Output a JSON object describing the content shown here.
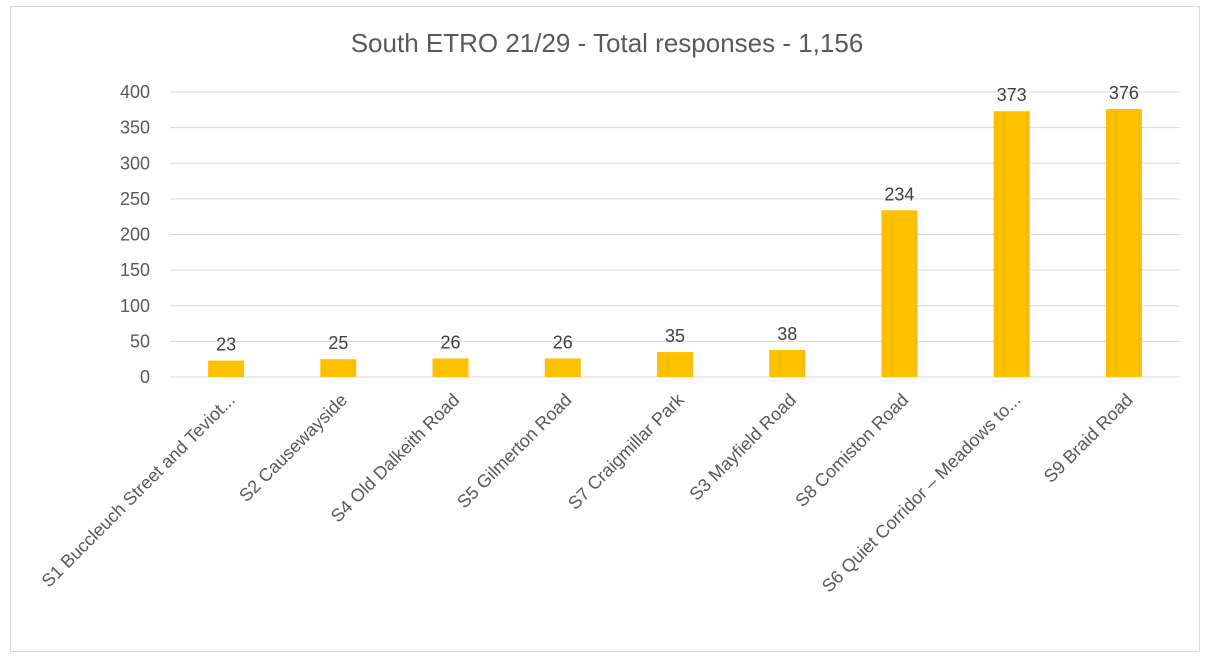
{
  "chart_data": {
    "type": "bar",
    "title": "South ETRO 21/29  - Total responses - 1,156",
    "xlabel": "",
    "ylabel": "",
    "ylim": [
      0,
      400
    ],
    "yticks": [
      0,
      50,
      100,
      150,
      200,
      250,
      300,
      350,
      400
    ],
    "grid": true,
    "legend": "none",
    "bar_color": "#FFC000",
    "categories": [
      "S1 Buccleuch Street and Teviot...",
      "S2 Causewayside",
      "S4 Old Dalkeith Road",
      "S5 Gilmerton Road",
      "S7 Craigmillar Park",
      "S3 Mayfield Road",
      "S8 Comiston Road",
      "S6 Quiet Corridor – Meadows to...",
      "S9 Braid Road"
    ],
    "values": [
      23,
      25,
      26,
      26,
      35,
      38,
      234,
      373,
      376
    ],
    "data_labels": [
      "23",
      "25",
      "26",
      "26",
      "35",
      "38",
      "234",
      "373",
      "376"
    ]
  }
}
